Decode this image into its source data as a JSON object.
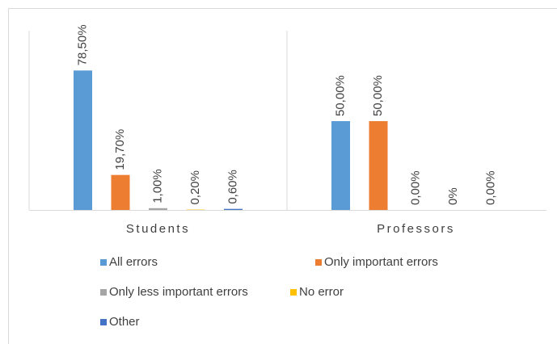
{
  "chart_data": {
    "type": "bar",
    "categories": [
      "Students",
      "Professors"
    ],
    "series": [
      {
        "name": "All errors",
        "color": "#5b9bd5",
        "values": [
          78.5,
          50
        ],
        "value_labels": [
          "78,50%",
          "50,00%"
        ]
      },
      {
        "name": "Only important errors",
        "color": "#ed7d31",
        "values": [
          19.7,
          50
        ],
        "value_labels": [
          "19,70%",
          "50,00%"
        ]
      },
      {
        "name": "Only less important errors",
        "color": "#a5a5a5",
        "values": [
          1,
          0
        ],
        "value_labels": [
          "1,00%",
          "0,00%"
        ]
      },
      {
        "name": "No error",
        "color": "#ffc000",
        "values": [
          0.2,
          0
        ],
        "value_labels": [
          "0,20%",
          "0%"
        ]
      },
      {
        "name": "Other",
        "color": "#4472c4",
        "values": [
          0.6,
          0
        ],
        "value_labels": [
          "0,60%",
          "0,00%"
        ]
      }
    ],
    "ylim": [
      0,
      100
    ]
  }
}
